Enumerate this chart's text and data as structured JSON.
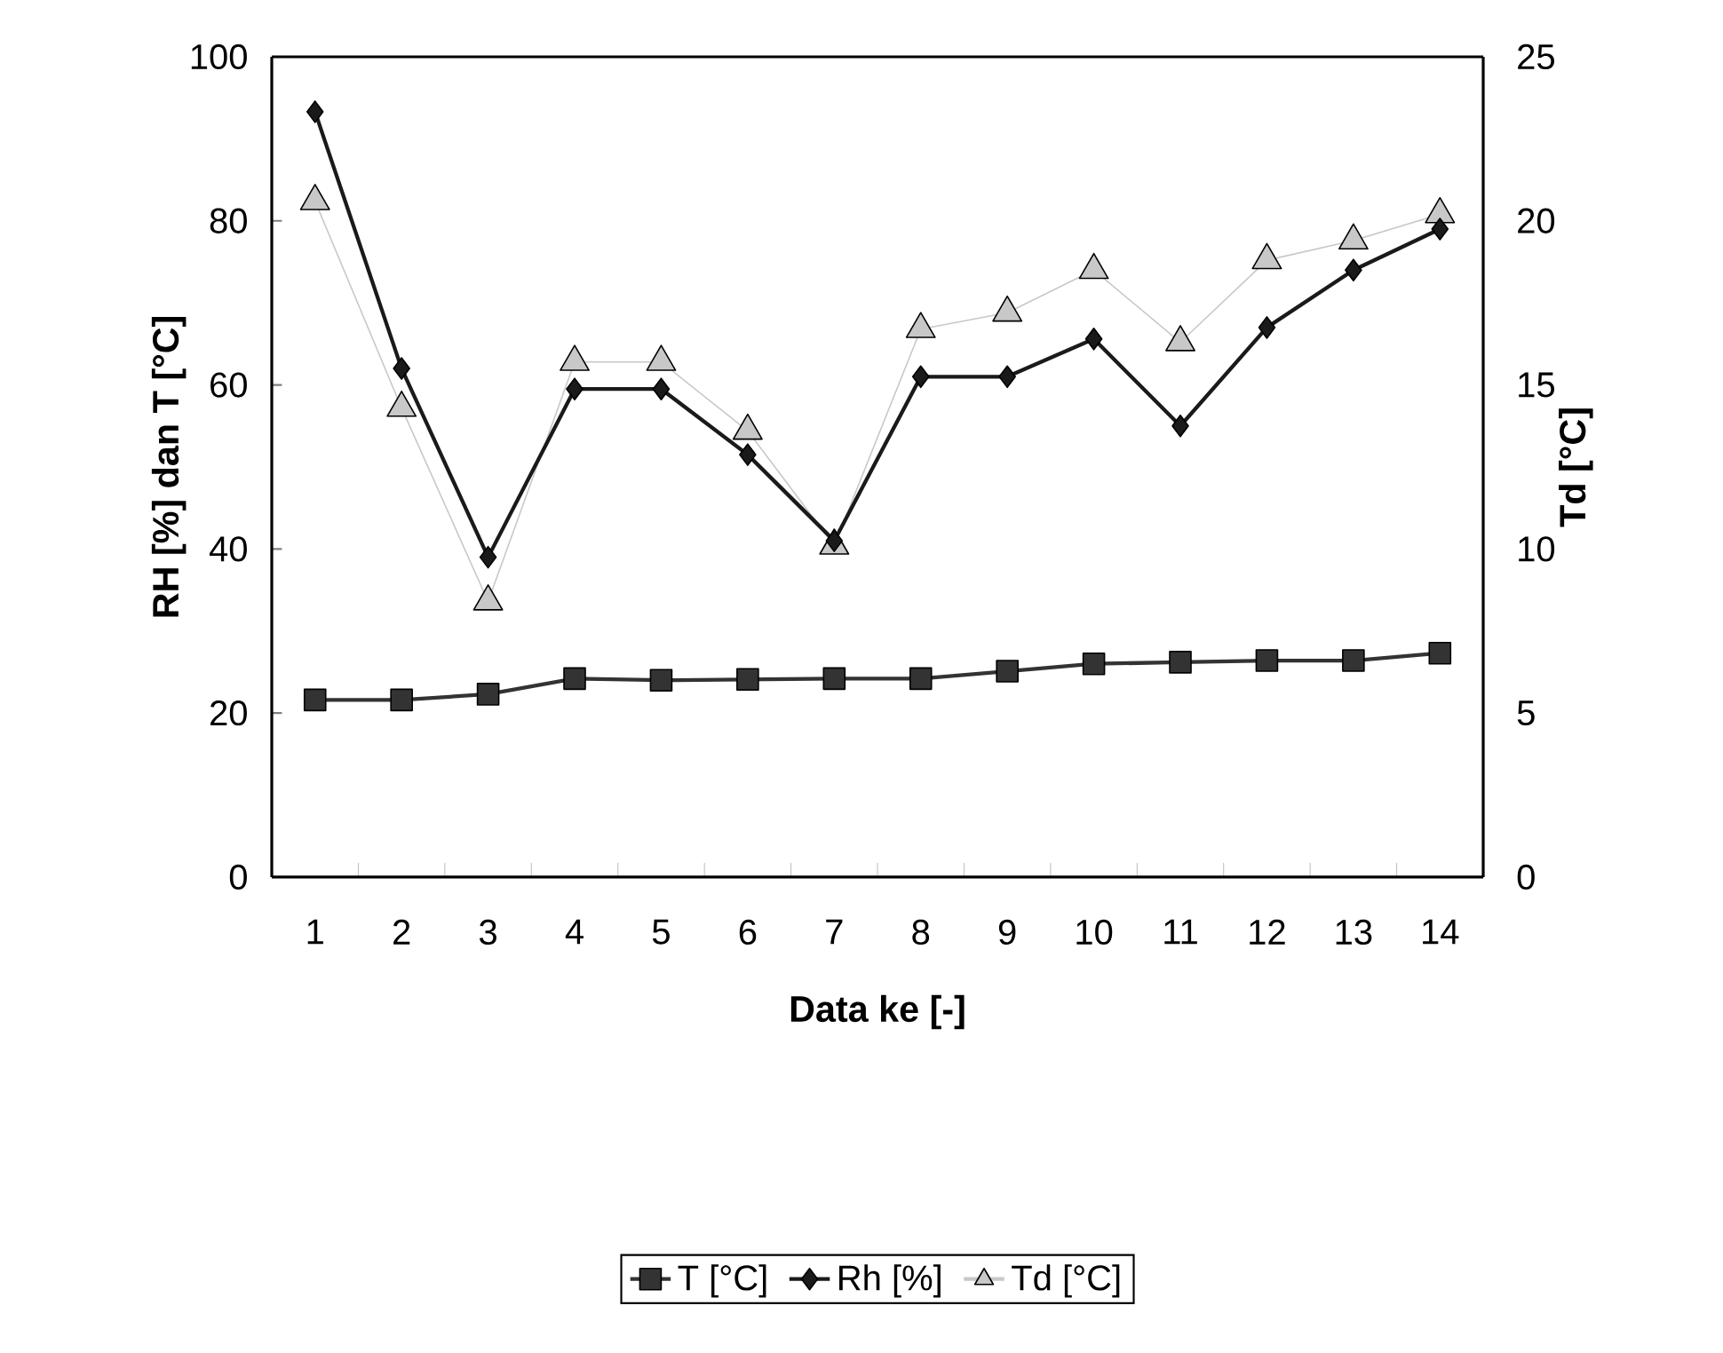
{
  "chart_data": {
    "type": "line",
    "xlabel": "Data ke [-]",
    "ylabel": "RH [%] dan T [°C]",
    "y2label": "Td [°C]",
    "categories": [
      "1",
      "2",
      "3",
      "4",
      "5",
      "6",
      "7",
      "8",
      "9",
      "10",
      "11",
      "12",
      "13",
      "14"
    ],
    "series": [
      {
        "name": "T [°C]",
        "color": "#333333",
        "marker": "square",
        "values": [
          21.6,
          21.6,
          22.3,
          24.2,
          24.0,
          24.1,
          24.2,
          24.2,
          25.1,
          26.0,
          26.2,
          26.4,
          26.4,
          27.3
        ]
      },
      {
        "name": "Rh [%]",
        "color": "#1a1a1a",
        "marker": "diamond",
        "values": [
          93.3,
          62,
          39,
          59.5,
          59.5,
          51.5,
          41,
          61,
          61,
          65.6,
          55,
          67,
          74,
          79
        ]
      },
      {
        "name": "Td [°C]",
        "color": "#c8c8c8",
        "marker": "triangle",
        "axis": "y2",
        "values": [
          20.6,
          14.3,
          8.4,
          15.7,
          15.7,
          13.6,
          10.1,
          16.7,
          17.2,
          18.5,
          16.3,
          18.8,
          19.4,
          20.2
        ]
      }
    ],
    "ylim": [
      0,
      100
    ],
    "yticks": [
      0,
      20,
      40,
      60,
      80,
      100
    ],
    "y2lim": [
      0,
      25
    ],
    "y2ticks": [
      0,
      5,
      10,
      15,
      20,
      25
    ],
    "grid": false,
    "legend": "bottom"
  }
}
